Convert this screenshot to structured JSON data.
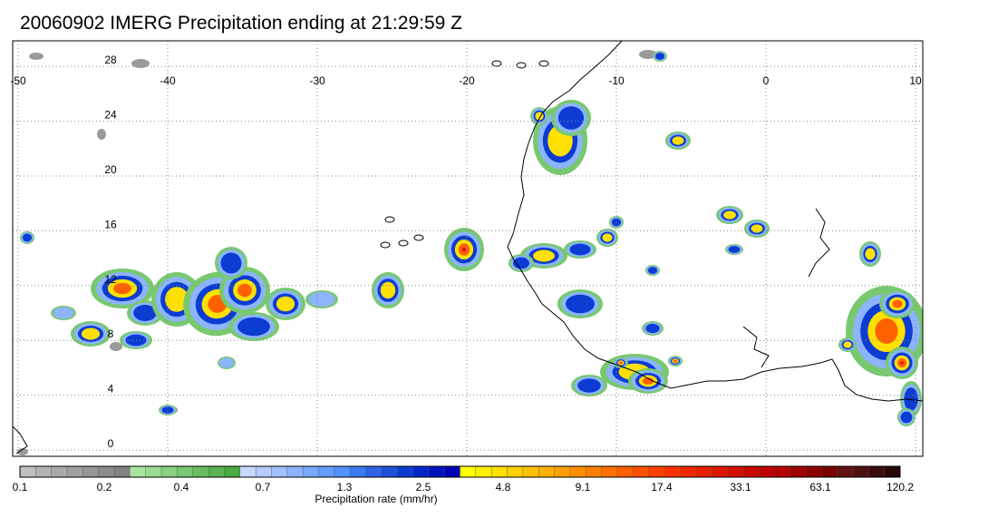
{
  "title": "20060902 IMERG Precipitation ending at 21:29:59 Z",
  "map": {
    "lon_range": [
      -50,
      10
    ],
    "lat_range": [
      -1,
      28
    ],
    "lon_ticks": [
      "-50",
      "-40",
      "-30",
      "-20",
      "-10",
      "0",
      "10"
    ],
    "lat_ticks": [
      "0",
      "4",
      "8",
      "12",
      "16",
      "20",
      "24",
      "28"
    ]
  },
  "colorbar": {
    "label": "Precipitation rate (mm/hr)",
    "tick_labels": [
      "0.1",
      "0.2",
      "0.4",
      "0.7",
      "1.3",
      "2.5",
      "4.8",
      "9.1",
      "17.4",
      "33.1",
      "63.1",
      "120.2"
    ],
    "colors": [
      "#c0c0c0",
      "#b4b4b4",
      "#aaaaaa",
      "#a0a0a0",
      "#969696",
      "#8c8c8c",
      "#828282",
      "#a8e6a0",
      "#98dc90",
      "#88d280",
      "#78c870",
      "#68be60",
      "#58b450",
      "#48aa40",
      "#c8d8ff",
      "#b4ccff",
      "#a0c0ff",
      "#8cb4ff",
      "#78a8ff",
      "#649cff",
      "#5090ff",
      "#3c78f0",
      "#2c64e6",
      "#1c50dc",
      "#0c3cd2",
      "#0028c8",
      "#0014be",
      "#0000b4",
      "#ffff00",
      "#fff000",
      "#ffe000",
      "#ffd000",
      "#ffc000",
      "#ffb000",
      "#ffa000",
      "#ff9000",
      "#ff8000",
      "#ff7000",
      "#ff6000",
      "#ff5000",
      "#ff4000",
      "#ff3000",
      "#f02800",
      "#e62000",
      "#dc1800",
      "#d21000",
      "#c80800",
      "#be0000",
      "#b40000",
      "#a00000",
      "#8c0000",
      "#780000",
      "#641010",
      "#501010",
      "#3c0c0c",
      "#280808"
    ]
  },
  "colors": {
    "coast": "#000000",
    "grid": "#777777",
    "frame": "#000000"
  }
}
